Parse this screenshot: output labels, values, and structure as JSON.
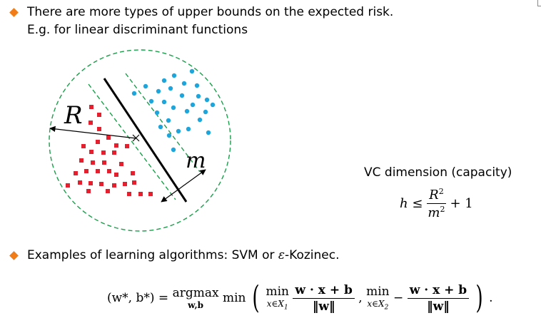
{
  "bullets": [
    {
      "line1": "There are more types of upper bounds on the expected risk.",
      "line2": "E.g. for linear discriminant functions"
    },
    {
      "prefix": "Examples of learning algorithms: SVM or ",
      "epsilon": "ε",
      "suffix": "-Kozinec."
    }
  ],
  "figure": {
    "label_R": "R",
    "label_m": "m",
    "colors": {
      "circle": "#1a9e4a",
      "class_a": "#e4202e",
      "class_b": "#1ea5dc",
      "separator": "#000000"
    }
  },
  "vc": {
    "title": "VC dimension (capacity)",
    "lhs": "h ≤",
    "numerator": "R",
    "numerator_exp": "2",
    "denominator": "m",
    "denominator_exp": "2",
    "tail": "+ 1"
  },
  "formula": {
    "lhs": "(w*, b*) =",
    "argmax": "argmax",
    "argmax_sub": "w,b",
    "min": "min",
    "inner_min1_sub": "x∈X",
    "inner_min1_subidx": "1",
    "inner_min2_sub": "x∈X",
    "inner_min2_subidx": "2",
    "num": "w · x + b",
    "den": "‖w‖",
    "minus": "−",
    "comma": ",",
    "end": "."
  },
  "bullet_color": "#f07d18"
}
